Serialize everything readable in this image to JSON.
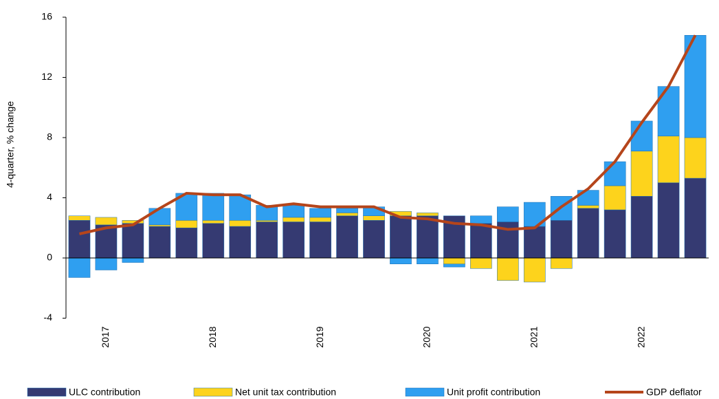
{
  "chart_data": {
    "type": "bar",
    "stacked": true,
    "y_label": "4-quarter, % change",
    "categories": [
      null,
      "2017",
      null,
      null,
      null,
      "2018",
      null,
      null,
      null,
      "2019",
      null,
      null,
      null,
      "2020",
      null,
      null,
      null,
      "2021",
      null,
      null,
      null,
      "2022",
      null,
      null
    ],
    "series": [
      {
        "name": "ULC contribution",
        "color": "#353a72",
        "type": "bar",
        "values": [
          2.5,
          2.2,
          2.3,
          2.1,
          2.0,
          2.3,
          2.1,
          2.4,
          2.4,
          2.4,
          2.8,
          2.5,
          2.8,
          2.8,
          2.8,
          2.3,
          2.4,
          2.1,
          2.5,
          3.3,
          3.2,
          4.1,
          5.0,
          5.3
        ]
      },
      {
        "name": "Net unit tax contribution",
        "color": "#fdd31c",
        "type": "bar",
        "values": [
          0.3,
          0.5,
          0.2,
          0.1,
          0.5,
          0.2,
          0.4,
          0.1,
          0.3,
          0.3,
          0.2,
          0.3,
          0.3,
          0.2,
          -0.4,
          -0.7,
          -1.5,
          -1.6,
          -0.7,
          0.2,
          1.6,
          3.0,
          3.1,
          2.7
        ]
      },
      {
        "name": "Unit profit contribution",
        "color": "#2f9ff0",
        "type": "bar",
        "values": [
          -1.3,
          -0.8,
          -0.3,
          1.1,
          1.8,
          1.8,
          1.7,
          1.0,
          0.8,
          0.6,
          0.3,
          0.6,
          -0.4,
          -0.4,
          -0.2,
          0.5,
          1.0,
          1.6,
          1.6,
          1.0,
          1.6,
          2.0,
          3.3,
          6.8
        ]
      },
      {
        "name": "GDP deflator",
        "color": "#b5451b",
        "type": "line",
        "values": [
          1.6,
          2.0,
          2.2,
          3.3,
          4.3,
          4.2,
          4.2,
          3.4,
          3.6,
          3.4,
          3.4,
          3.4,
          2.7,
          2.6,
          2.3,
          2.2,
          1.9,
          2.0,
          3.4,
          4.6,
          6.4,
          9.0,
          11.4,
          14.8
        ]
      }
    ],
    "ylim": [
      -4,
      16
    ],
    "yticks": [
      -4,
      0,
      4,
      8,
      12,
      16
    ],
    "grid": false
  }
}
